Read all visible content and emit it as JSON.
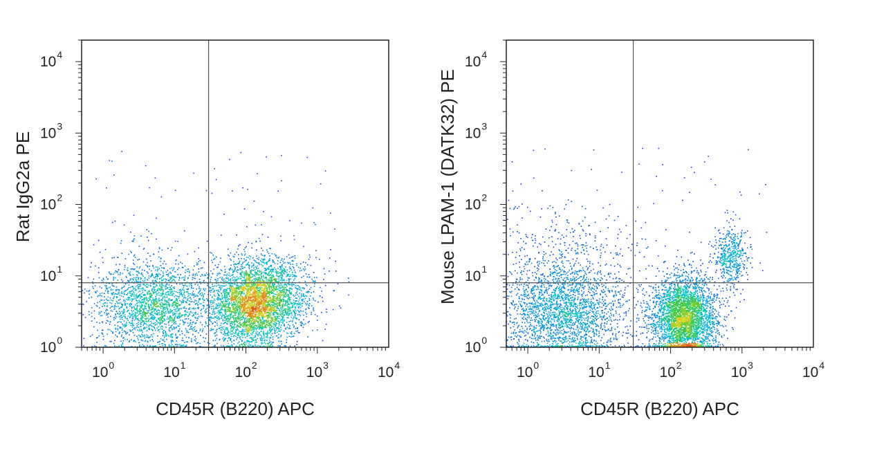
{
  "chart_data": [
    {
      "type": "scatter",
      "xlabel": "CD45R (B220) APC",
      "ylabel": "Rat IgG2a PE",
      "x_scale": "log",
      "y_scale": "log",
      "xlim": [
        0.5,
        10000
      ],
      "ylim": [
        1,
        20000
      ],
      "x_ticks": [
        {
          "base": "10",
          "exp": "0"
        },
        {
          "base": "10",
          "exp": "1"
        },
        {
          "base": "10",
          "exp": "2"
        },
        {
          "base": "10",
          "exp": "3"
        },
        {
          "base": "10",
          "exp": "4"
        }
      ],
      "y_ticks": [
        {
          "base": "10",
          "exp": "0"
        },
        {
          "base": "10",
          "exp": "1"
        },
        {
          "base": "10",
          "exp": "2"
        },
        {
          "base": "10",
          "exp": "3"
        },
        {
          "base": "10",
          "exp": "4"
        }
      ],
      "quadrant_gate": {
        "x": 30,
        "y": 8
      },
      "grid": false,
      "populations": [
        {
          "x_center": 5,
          "y_center": 4,
          "x_spread_decades": 0.42,
          "y_spread_decades": 0.32,
          "events": 2200
        },
        {
          "x_center": 120,
          "y_center": 4,
          "x_spread_decades": 0.3,
          "y_spread_decades": 0.3,
          "events": 3400
        },
        {
          "x_center": 300,
          "y_center": 6,
          "x_spread_decades": 0.3,
          "y_spread_decades": 0.28,
          "events": 700
        }
      ]
    },
    {
      "type": "scatter",
      "xlabel": "CD45R (B220) APC",
      "ylabel": "Mouse LPAM-1 (DATK32) PE",
      "x_scale": "log",
      "y_scale": "log",
      "xlim": [
        0.5,
        10000
      ],
      "ylim": [
        1,
        20000
      ],
      "x_ticks": [
        {
          "base": "10",
          "exp": "0"
        },
        {
          "base": "10",
          "exp": "1"
        },
        {
          "base": "10",
          "exp": "2"
        },
        {
          "base": "10",
          "exp": "3"
        },
        {
          "base": "10",
          "exp": "4"
        }
      ],
      "y_ticks": [
        {
          "base": "10",
          "exp": "0"
        },
        {
          "base": "10",
          "exp": "1"
        },
        {
          "base": "10",
          "exp": "2"
        },
        {
          "base": "10",
          "exp": "3"
        },
        {
          "base": "10",
          "exp": "4"
        }
      ],
      "quadrant_gate": {
        "x": 30,
        "y": 8
      },
      "grid": false,
      "populations": [
        {
          "x_center": 3,
          "y_center": 3,
          "x_spread_decades": 0.42,
          "y_spread_decades": 0.35,
          "events": 2400
        },
        {
          "x_center": 150,
          "y_center": 2.5,
          "x_spread_decades": 0.22,
          "y_spread_decades": 0.3,
          "events": 3600
        },
        {
          "x_center": 700,
          "y_center": 18,
          "x_spread_decades": 0.12,
          "y_spread_decades": 0.22,
          "events": 500
        },
        {
          "x_center": 4,
          "y_center": 20,
          "x_spread_decades": 0.6,
          "y_spread_decades": 0.35,
          "events": 350
        }
      ]
    }
  ]
}
